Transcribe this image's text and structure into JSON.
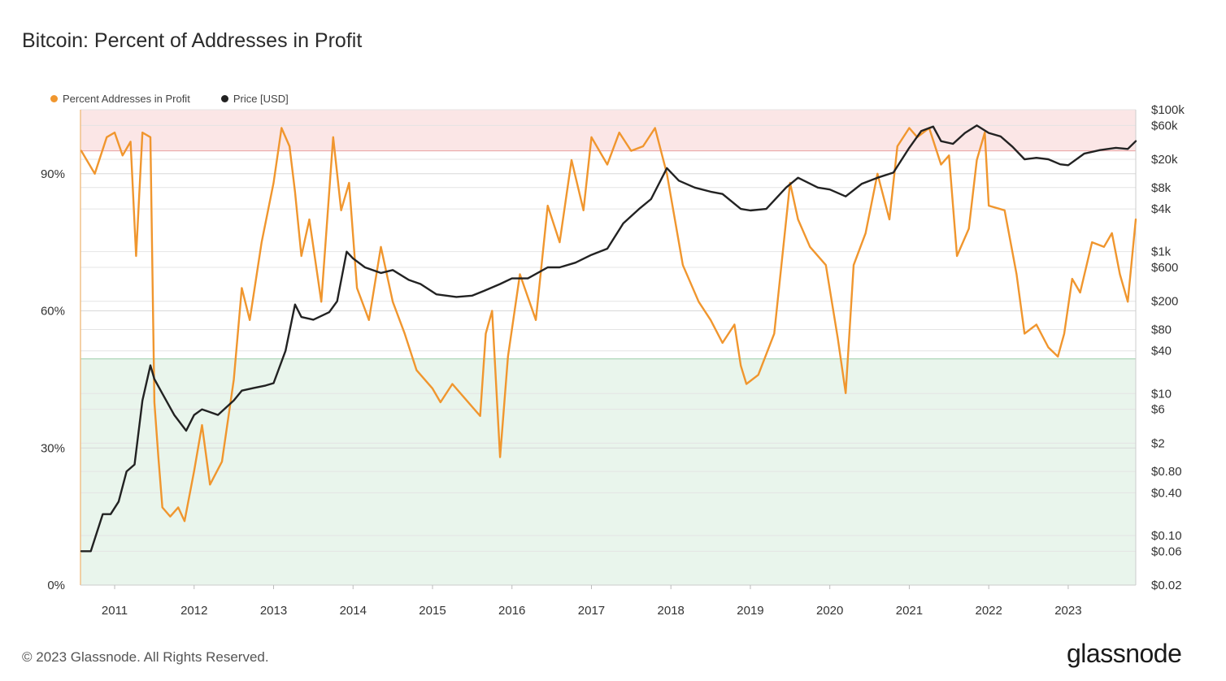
{
  "chart_data": {
    "type": "line",
    "title": "Bitcoin: Percent of Addresses in Profit",
    "legend_placement": "top-left",
    "x_ticks": [
      "2011",
      "2012",
      "2013",
      "2014",
      "2015",
      "2016",
      "2017",
      "2018",
      "2019",
      "2020",
      "2021",
      "2022",
      "2023"
    ],
    "x_range": [
      2010.57,
      2023.85
    ],
    "y_left": {
      "ticks": [
        "0%",
        "30%",
        "60%",
        "90%"
      ],
      "tick_values": [
        0,
        30,
        60,
        90
      ],
      "range": [
        0,
        104
      ]
    },
    "y_right": {
      "scale": "log",
      "ticks": [
        "$100k",
        "$60k",
        "$20k",
        "$8k",
        "$4k",
        "$1k",
        "$600",
        "$200",
        "$80",
        "$40",
        "$10",
        "$6",
        "$2",
        "$0.80",
        "$0.40",
        "$0.10",
        "$0.06",
        "$0.02"
      ],
      "tick_values": [
        100000,
        60000,
        20000,
        8000,
        4000,
        1000,
        600,
        200,
        80,
        40,
        10,
        6,
        2,
        0.8,
        0.4,
        0.1,
        0.06,
        0.02
      ],
      "range": [
        0.02,
        100000
      ]
    },
    "bands": [
      {
        "name": "upper",
        "from": 95,
        "to": 104,
        "color": "#fbe6e6",
        "line_color": "#e8a0a0"
      },
      {
        "name": "lower",
        "from": 0,
        "to": 49.5,
        "color": "#e9f5ec",
        "line_color": "#9ccfaa"
      }
    ],
    "series": [
      {
        "name": "Percent Addresses in Profit",
        "axis": "left",
        "color": "#f0962e",
        "x": [
          2010.58,
          2010.75,
          2010.9,
          2011.0,
          2011.1,
          2011.2,
          2011.27,
          2011.35,
          2011.45,
          2011.5,
          2011.55,
          2011.6,
          2011.7,
          2011.8,
          2011.88,
          2012.0,
          2012.1,
          2012.2,
          2012.35,
          2012.5,
          2012.6,
          2012.7,
          2012.85,
          2013.0,
          2013.1,
          2013.2,
          2013.27,
          2013.35,
          2013.45,
          2013.6,
          2013.75,
          2013.85,
          2013.95,
          2014.05,
          2014.2,
          2014.35,
          2014.5,
          2014.65,
          2014.8,
          2015.0,
          2015.1,
          2015.25,
          2015.4,
          2015.6,
          2015.67,
          2015.75,
          2015.85,
          2015.95,
          2016.1,
          2016.3,
          2016.45,
          2016.6,
          2016.75,
          2016.9,
          2017.0,
          2017.2,
          2017.35,
          2017.5,
          2017.65,
          2017.8,
          2017.95,
          2018.05,
          2018.15,
          2018.35,
          2018.5,
          2018.65,
          2018.8,
          2018.88,
          2018.95,
          2019.1,
          2019.3,
          2019.5,
          2019.6,
          2019.75,
          2019.95,
          2020.1,
          2020.2,
          2020.3,
          2020.45,
          2020.6,
          2020.75,
          2020.85,
          2021.0,
          2021.1,
          2021.25,
          2021.4,
          2021.5,
          2021.6,
          2021.75,
          2021.85,
          2021.95,
          2022.0,
          2022.2,
          2022.35,
          2022.45,
          2022.6,
          2022.75,
          2022.87,
          2022.95,
          2023.05,
          2023.15,
          2023.3,
          2023.45,
          2023.55,
          2023.65,
          2023.75,
          2023.85
        ],
        "values": [
          95,
          90,
          98,
          99,
          94,
          97,
          72,
          99,
          98,
          40,
          28,
          17,
          15,
          17,
          14,
          25,
          35,
          22,
          27,
          45,
          65,
          58,
          75,
          88,
          100,
          96,
          86,
          72,
          80,
          62,
          98,
          82,
          88,
          65,
          58,
          74,
          62,
          55,
          47,
          43,
          40,
          44,
          41,
          37,
          55,
          60,
          28,
          50,
          68,
          58,
          83,
          75,
          93,
          82,
          98,
          92,
          99,
          95,
          96,
          100,
          90,
          80,
          70,
          62,
          58,
          53,
          57,
          48,
          44,
          46,
          55,
          88,
          80,
          74,
          70,
          54,
          42,
          70,
          77,
          90,
          80,
          96,
          100,
          98,
          100,
          92,
          94,
          72,
          78,
          93,
          99,
          83,
          82,
          68,
          55,
          57,
          52,
          50,
          55,
          67,
          64,
          75,
          74,
          77,
          68,
          62,
          80
        ]
      },
      {
        "name": "Price [USD]",
        "axis": "right",
        "color": "#222222",
        "x": [
          2010.58,
          2010.7,
          2010.85,
          2010.95,
          2011.05,
          2011.15,
          2011.25,
          2011.35,
          2011.45,
          2011.5,
          2011.6,
          2011.75,
          2011.9,
          2012.0,
          2012.1,
          2012.3,
          2012.5,
          2012.6,
          2012.75,
          2012.9,
          2013.0,
          2013.15,
          2013.27,
          2013.35,
          2013.5,
          2013.7,
          2013.8,
          2013.92,
          2014.0,
          2014.15,
          2014.35,
          2014.5,
          2014.7,
          2014.85,
          2015.05,
          2015.3,
          2015.5,
          2015.65,
          2015.85,
          2016.0,
          2016.2,
          2016.45,
          2016.6,
          2016.8,
          2017.0,
          2017.2,
          2017.4,
          2017.6,
          2017.75,
          2017.95,
          2018.1,
          2018.3,
          2018.5,
          2018.65,
          2018.88,
          2019.0,
          2019.2,
          2019.45,
          2019.6,
          2019.85,
          2020.0,
          2020.2,
          2020.4,
          2020.6,
          2020.8,
          2021.0,
          2021.15,
          2021.3,
          2021.4,
          2021.55,
          2021.7,
          2021.85,
          2022.0,
          2022.15,
          2022.3,
          2022.45,
          2022.6,
          2022.75,
          2022.9,
          2023.0,
          2023.2,
          2023.4,
          2023.6,
          2023.75,
          2023.85
        ],
        "values": [
          0.06,
          0.06,
          0.2,
          0.2,
          0.3,
          0.8,
          1.0,
          8,
          25,
          16,
          10,
          5,
          3,
          5,
          6,
          5,
          8,
          11,
          12,
          13,
          14,
          40,
          180,
          120,
          110,
          140,
          200,
          1000,
          800,
          600,
          500,
          550,
          400,
          350,
          250,
          230,
          240,
          280,
          350,
          420,
          420,
          600,
          600,
          700,
          900,
          1100,
          2500,
          4000,
          5500,
          15000,
          10000,
          8000,
          7000,
          6500,
          4000,
          3800,
          4000,
          8000,
          11000,
          8000,
          7500,
          6000,
          9000,
          11000,
          13000,
          29000,
          50000,
          58000,
          36000,
          33000,
          47000,
          60000,
          47000,
          42000,
          30000,
          20000,
          21000,
          20000,
          17000,
          16500,
          24000,
          27000,
          29000,
          28000,
          36000
        ]
      }
    ]
  },
  "footer": {
    "copyright": "© 2023 Glassnode. All Rights Reserved.",
    "brand": "glassnode"
  }
}
